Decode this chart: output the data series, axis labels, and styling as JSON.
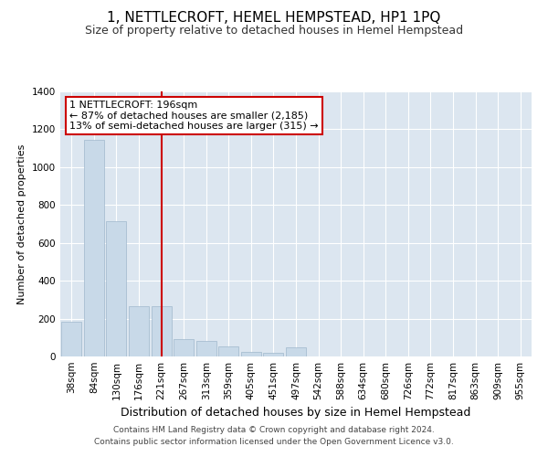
{
  "title": "1, NETTLECROFT, HEMEL HEMPSTEAD, HP1 1PQ",
  "subtitle": "Size of property relative to detached houses in Hemel Hempstead",
  "xlabel": "Distribution of detached houses by size in Hemel Hempstead",
  "ylabel": "Number of detached properties",
  "footer_line1": "Contains HM Land Registry data © Crown copyright and database right 2024.",
  "footer_line2": "Contains public sector information licensed under the Open Government Licence v3.0.",
  "categories": [
    "38sqm",
    "84sqm",
    "130sqm",
    "176sqm",
    "221sqm",
    "267sqm",
    "313sqm",
    "359sqm",
    "405sqm",
    "451sqm",
    "497sqm",
    "542sqm",
    "588sqm",
    "634sqm",
    "680sqm",
    "726sqm",
    "772sqm",
    "817sqm",
    "863sqm",
    "909sqm",
    "955sqm"
  ],
  "values": [
    185,
    1145,
    715,
    265,
    265,
    90,
    80,
    55,
    25,
    18,
    50,
    0,
    0,
    0,
    0,
    0,
    0,
    0,
    0,
    0,
    0
  ],
  "bar_color": "#c8d9e8",
  "bar_edge_color": "#a0b8cc",
  "vline_color": "#cc0000",
  "vline_pos": 4.0,
  "annotation_text": "1 NETTLECROFT: 196sqm\n← 87% of detached houses are smaller (2,185)\n13% of semi-detached houses are larger (315) →",
  "annotation_box_color": "#ffffff",
  "annotation_box_edge": "#cc0000",
  "ylim": [
    0,
    1400
  ],
  "yticks": [
    0,
    200,
    400,
    600,
    800,
    1000,
    1200,
    1400
  ],
  "plot_bg_color": "#dce6f0",
  "title_fontsize": 11,
  "subtitle_fontsize": 9,
  "annotation_fontsize": 8,
  "axis_label_fontsize": 8,
  "tick_fontsize": 7.5
}
